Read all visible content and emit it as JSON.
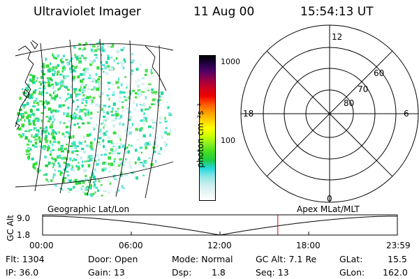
{
  "header": {
    "instrument": "Ultraviolet Imager",
    "date": "11 Aug 00",
    "time": "15:54:13 UT"
  },
  "colorbar": {
    "unit_label": "photon cm⁻²s⁻¹",
    "tick_labels": [
      "1000",
      "100"
    ],
    "colors": [
      "#ffffff",
      "#e8f4f4",
      "#c8eeee",
      "#88e6e6",
      "#22d8d8",
      "#22cc44",
      "#44dd22",
      "#88ee22",
      "#ccff00",
      "#ffff00",
      "#ffcc00",
      "#ff9900",
      "#ff5500",
      "#ee0000",
      "#cc0022",
      "#990044",
      "#550066",
      "#220044",
      "#000000"
    ]
  },
  "polar_plot": {
    "mlt_labels": {
      "top": "12",
      "left": "18",
      "right": "6",
      "bottom": "0"
    },
    "lat_labels": [
      "60",
      "70",
      "80"
    ]
  },
  "timeline": {
    "left_label": "Geographic Lat/Lon",
    "right_label": "Apex MLat/MLT",
    "axis_title": "GC Alt",
    "y_ticks": [
      "9.0",
      "1.8"
    ],
    "x_ticks": [
      "00:00",
      "06:00",
      "12:00",
      "18:00",
      "23:59"
    ],
    "current_time_fraction": 0.663,
    "marker_color": "#cc0000"
  },
  "status": {
    "flt": "Flt: 1304",
    "ip": "IP: 36.0",
    "door": "Door: Open",
    "gain": "Gain: 13",
    "mode": "Mode: Normal",
    "dsp_label": "Dsp:",
    "dsp_value": "1.8",
    "gcalt": "GC Alt: 7.1 Re",
    "seq": "Seq: 13",
    "glat_label": "GLat:",
    "glat_value": "15.5",
    "glon_label": "GLon:",
    "glon_value": "162.0"
  }
}
